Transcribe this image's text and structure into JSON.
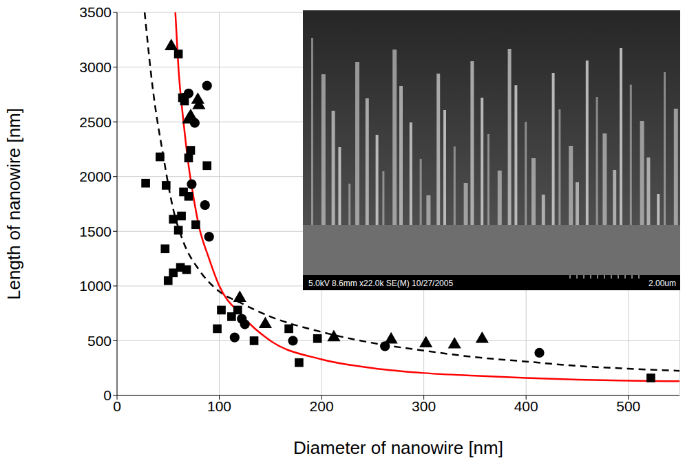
{
  "chart_data": {
    "type": "scatter",
    "x_label": "Diameter of nanowire [nm]",
    "y_label": "Length of nanowire [nm]",
    "xlim": [
      0,
      550
    ],
    "ylim": [
      0,
      3500
    ],
    "xticks": [
      0,
      100,
      200,
      300,
      400,
      500
    ],
    "yticks": [
      0,
      500,
      1000,
      1500,
      2000,
      2500,
      3000,
      3500
    ],
    "grid": true,
    "annotations": [
      "5.0kV 8.6mm x22.0k SE(M) 10/27/2005",
      "2.00um"
    ],
    "series": [
      {
        "type": "scatter",
        "marker": "square",
        "color": "#000000",
        "x": [
          28,
          42,
          48,
          47,
          50,
          55,
          55,
          60,
          60,
          62,
          63,
          64,
          65,
          66,
          68,
          70,
          70,
          72,
          77,
          88,
          98,
          102,
          112,
          118,
          134,
          168,
          178,
          196,
          522
        ],
        "values": [
          1940,
          2180,
          1920,
          1340,
          1050,
          1610,
          1120,
          3120,
          1510,
          1170,
          1640,
          2720,
          1860,
          2690,
          1150,
          1820,
          2170,
          2240,
          1560,
          2100,
          610,
          780,
          720,
          780,
          500,
          610,
          300,
          520,
          160
        ]
      },
      {
        "type": "scatter",
        "marker": "circle",
        "color": "#000000",
        "x": [
          65,
          70,
          73,
          76,
          86,
          88,
          90,
          115,
          122,
          125,
          172,
          262,
          413
        ],
        "values": [
          2720,
          2760,
          1930,
          2490,
          1740,
          2830,
          1450,
          530,
          700,
          650,
          500,
          450,
          390
        ]
      },
      {
        "type": "scatter",
        "marker": "triangle",
        "color": "#000000",
        "x": [
          53,
          70,
          72,
          79,
          80,
          120,
          145,
          212,
          268,
          302,
          330,
          357
        ],
        "values": [
          3190,
          2520,
          2550,
          2700,
          2650,
          890,
          650,
          530,
          510,
          475,
          465,
          515
        ]
      },
      {
        "type": "line",
        "line_style": "dashed",
        "color": "#000000",
        "x": [
          27,
          35,
          45,
          55,
          65,
          80,
          100,
          120,
          150,
          200,
          250,
          300,
          350,
          400,
          450,
          500,
          550
        ],
        "values": [
          3500,
          2800,
          2200,
          1700,
          1400,
          1150,
          950,
          850,
          720,
          580,
          480,
          410,
          350,
          310,
          270,
          245,
          225
        ]
      },
      {
        "type": "line",
        "line_style": "solid",
        "color": "#ff0000",
        "x": [
          57,
          60,
          65,
          70,
          75,
          80,
          90,
          100,
          120,
          150,
          200,
          250,
          300,
          350,
          400,
          450,
          500,
          550
        ],
        "values": [
          3500,
          3000,
          2500,
          2100,
          1800,
          1550,
          1250,
          1000,
          750,
          500,
          330,
          250,
          205,
          180,
          160,
          145,
          135,
          130
        ]
      }
    ]
  }
}
